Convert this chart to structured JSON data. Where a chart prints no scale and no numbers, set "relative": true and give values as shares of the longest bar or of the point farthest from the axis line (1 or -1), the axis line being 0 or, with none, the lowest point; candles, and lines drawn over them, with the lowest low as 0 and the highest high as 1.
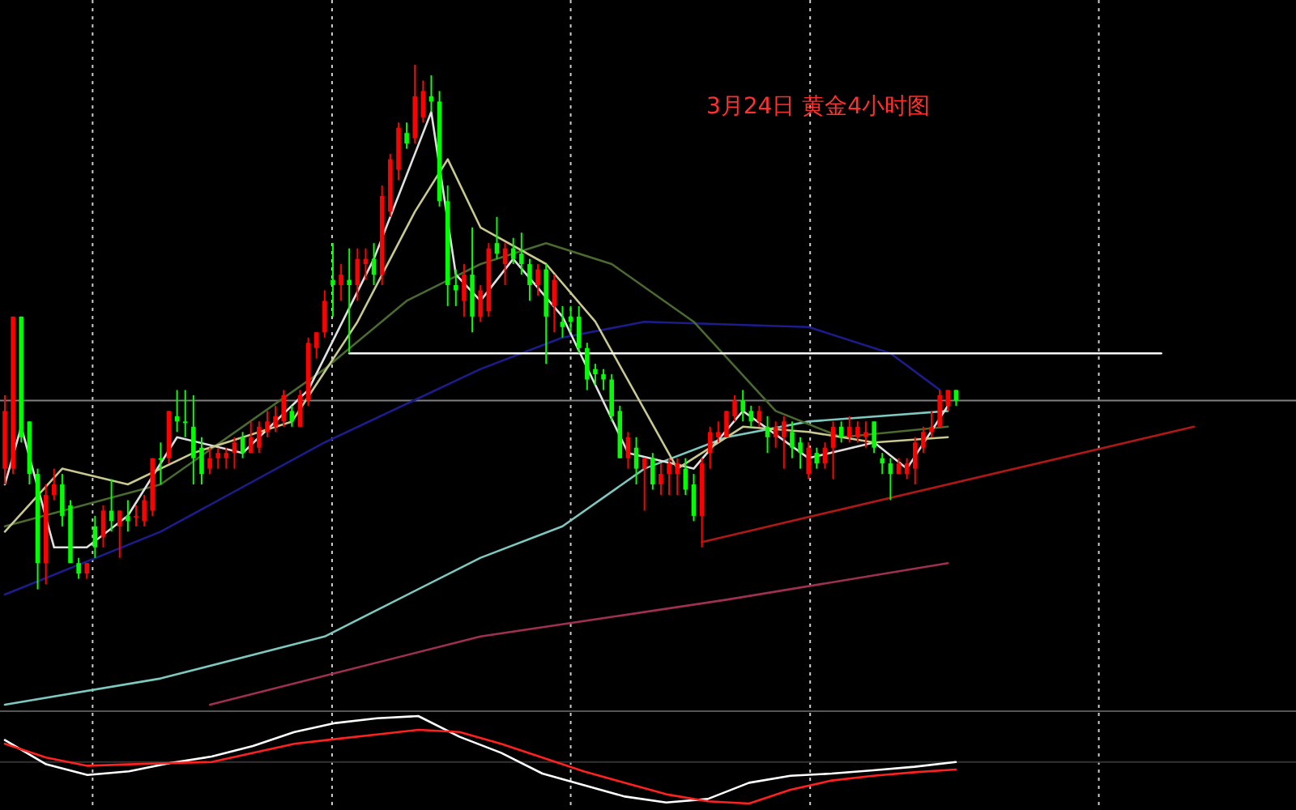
{
  "chart_data": [
    {
      "type": "candlestick",
      "title": "3月24日 黄金4小时图",
      "relative": true,
      "categories": [
        null,
        null,
        null,
        null,
        null,
        null,
        null,
        null,
        null,
        null,
        null,
        null,
        null,
        null,
        null,
        null,
        null,
        null,
        null,
        null,
        null,
        null,
        null,
        null,
        null,
        null,
        null,
        null,
        null,
        null,
        null,
        null,
        null,
        null,
        null,
        null,
        null,
        null,
        null,
        null,
        null,
        null,
        null,
        null,
        null,
        null,
        null,
        null,
        null,
        null,
        null,
        null,
        null,
        null,
        null,
        null,
        null,
        null,
        null,
        null,
        null,
        null,
        null,
        null,
        null,
        null,
        null,
        null,
        null,
        null,
        null,
        null,
        null,
        null,
        null,
        null,
        null,
        null,
        null,
        null,
        null,
        null,
        null,
        null,
        null,
        null,
        null,
        null,
        null,
        null,
        null,
        null,
        null,
        null,
        null,
        null,
        null,
        null,
        null,
        null,
        null,
        null,
        null,
        null,
        null,
        null,
        null,
        null,
        null,
        null,
        null,
        null,
        null,
        null,
        null,
        null,
        null,
        null,
        null,
        null,
        null,
        null,
        null,
        null,
        null,
        null,
        null,
        null,
        null,
        null,
        null,
        null,
        null,
        null,
        null,
        null,
        null,
        null,
        null,
        null,
        null,
        null,
        null,
        null,
        null,
        null
      ],
      "ohlc": [
        [
          0.23,
          0.37,
          0.2,
          0.34
        ],
        [
          0.23,
          0.52,
          0.22,
          0.52
        ],
        [
          0.52,
          0.52,
          0.28,
          0.29
        ],
        [
          0.32,
          0.32,
          0.2,
          0.22
        ],
        [
          0.22,
          0.23,
          0,
          0.05
        ],
        [
          0.05,
          0.2,
          0.01,
          0.18
        ],
        [
          0.18,
          0.23,
          0.17,
          0.2
        ],
        [
          0.2,
          0.22,
          0.12,
          0.14
        ],
        [
          0.16,
          0.17,
          0.05,
          0.05
        ],
        [
          0.05,
          0.06,
          0.02,
          0.03
        ],
        [
          0.03,
          0.05,
          0.02,
          0.05
        ],
        [
          0.12,
          0.14,
          0.06,
          0.08
        ],
        [
          0.1,
          0.16,
          0.08,
          0.15
        ],
        [
          0.15,
          0.21,
          0.11,
          0.13
        ],
        [
          0.12,
          0.15,
          0.06,
          0.15
        ],
        [
          0.14,
          0.17,
          0.11,
          0.13
        ],
        [
          0.14,
          0.16,
          0.12,
          0.14
        ],
        [
          0.13,
          0.18,
          0.12,
          0.17
        ],
        [
          0.15,
          0.25,
          0.14,
          0.25
        ],
        [
          0.25,
          0.28,
          0.2,
          0.25
        ],
        [
          0.25,
          0.34,
          0.24,
          0.34
        ],
        [
          0.33,
          0.38,
          0.3,
          0.32
        ],
        [
          0.32,
          0.38,
          0.29,
          0.32
        ],
        [
          0.31,
          0.37,
          0.2,
          0.25
        ],
        [
          0.27,
          0.29,
          0.2,
          0.22
        ],
        [
          0.23,
          0.27,
          0.22,
          0.25
        ],
        [
          0.25,
          0.27,
          0.23,
          0.26
        ],
        [
          0.25,
          0.27,
          0.23,
          0.26
        ],
        [
          0.26,
          0.29,
          0.23,
          0.28
        ],
        [
          0.29,
          0.3,
          0.25,
          0.26
        ],
        [
          0.26,
          0.32,
          0.26,
          0.29
        ],
        [
          0.27,
          0.32,
          0.26,
          0.31
        ],
        [
          0.3,
          0.34,
          0.29,
          0.32
        ],
        [
          0.31,
          0.35,
          0.3,
          0.33
        ],
        [
          0.32,
          0.38,
          0.31,
          0.37
        ],
        [
          0.34,
          0.35,
          0.31,
          0.32
        ],
        [
          0.31,
          0.38,
          0.31,
          0.37
        ],
        [
          0.36,
          0.48,
          0.35,
          0.47
        ],
        [
          0.46,
          0.49,
          0.44,
          0.49
        ],
        [
          0.49,
          0.57,
          0.48,
          0.55
        ],
        [
          0.59,
          0.66,
          0.52,
          0.58
        ],
        [
          0.58,
          0.62,
          0.55,
          0.6
        ],
        [
          0.59,
          0.65,
          0.45,
          0.58
        ],
        [
          0.58,
          0.65,
          0.55,
          0.63
        ],
        [
          0.62,
          0.65,
          0.59,
          0.63
        ],
        [
          0.63,
          0.66,
          0.58,
          0.6
        ],
        [
          0.6,
          0.77,
          0.58,
          0.75
        ],
        [
          0.72,
          0.83,
          0.71,
          0.82
        ],
        [
          0.8,
          0.89,
          0.78,
          0.88
        ],
        [
          0.87,
          0.89,
          0.84,
          0.85
        ],
        [
          0.86,
          1,
          0.85,
          0.94
        ],
        [
          0.9,
          0.97,
          0.89,
          0.95
        ],
        [
          0.94,
          0.98,
          0.91,
          0.93
        ],
        [
          0.93,
          0.95,
          0.73,
          0.74
        ],
        [
          0.74,
          0.77,
          0.54,
          0.58
        ],
        [
          0.58,
          0.61,
          0.54,
          0.57
        ],
        [
          0.55,
          0.62,
          0.52,
          0.6
        ],
        [
          0.6,
          0.69,
          0.49,
          0.52
        ],
        [
          0.52,
          0.58,
          0.51,
          0.57
        ],
        [
          0.53,
          0.66,
          0.52,
          0.65
        ],
        [
          0.66,
          0.71,
          0.63,
          0.64
        ],
        [
          0.62,
          0.66,
          0.58,
          0.65
        ],
        [
          0.65,
          0.67,
          0.62,
          0.63
        ],
        [
          0.64,
          0.68,
          0.6,
          0.62
        ],
        [
          0.62,
          0.63,
          0.55,
          0.58
        ],
        [
          0.58,
          0.62,
          0.56,
          0.61
        ],
        [
          0.61,
          0.62,
          0.43,
          0.52
        ],
        [
          0.54,
          0.6,
          0.49,
          0.59
        ],
        [
          0.51,
          0.54,
          0.48,
          0.5
        ],
        [
          0.52,
          0.54,
          0.49,
          0.51
        ],
        [
          0.52,
          0.54,
          0.45,
          0.46
        ],
        [
          0.46,
          0.47,
          0.38,
          0.4
        ],
        [
          0.42,
          0.43,
          0.39,
          0.41
        ],
        [
          0.41,
          0.42,
          0.38,
          0.4
        ],
        [
          0.4,
          0.41,
          0.32,
          0.33
        ],
        [
          0.34,
          0.35,
          0.25,
          0.25
        ],
        [
          0.25,
          0.3,
          0.23,
          0.29
        ],
        [
          0.27,
          0.29,
          0.2,
          0.23
        ],
        [
          0.23,
          0.25,
          0.15,
          0.25
        ],
        [
          0.25,
          0.26,
          0.19,
          0.2
        ],
        [
          0.2,
          0.24,
          0.18,
          0.22
        ],
        [
          0.22,
          0.25,
          0.18,
          0.24
        ],
        [
          0.22,
          0.25,
          0.18,
          0.24
        ],
        [
          0.23,
          0.25,
          0.18,
          0.19
        ],
        [
          0.2,
          0.22,
          0.13,
          0.14
        ],
        [
          0.14,
          0.25,
          0.08,
          0.24
        ],
        [
          0.26,
          0.31,
          0.23,
          0.3
        ],
        [
          0.29,
          0.32,
          0.28,
          0.3
        ],
        [
          0.29,
          0.34,
          0.29,
          0.34
        ],
        [
          0.33,
          0.37,
          0.32,
          0.36
        ],
        [
          0.36,
          0.38,
          0.32,
          0.34
        ],
        [
          0.34,
          0.35,
          0.31,
          0.32
        ],
        [
          0.32,
          0.35,
          0.31,
          0.34
        ],
        [
          0.31,
          0.33,
          0.26,
          0.29
        ],
        [
          0.29,
          0.32,
          0.27,
          0.31
        ],
        [
          0.29,
          0.33,
          0.23,
          0.32
        ],
        [
          0.3,
          0.32,
          0.25,
          0.27
        ],
        [
          0.28,
          0.29,
          0.23,
          0.26
        ],
        [
          0.22,
          0.28,
          0.21,
          0.27
        ],
        [
          0.26,
          0.27,
          0.23,
          0.24
        ],
        [
          0.24,
          0.28,
          0.23,
          0.27
        ],
        [
          0.27,
          0.32,
          0.21,
          0.31
        ],
        [
          0.31,
          0.32,
          0.28,
          0.29
        ],
        [
          0.29,
          0.33,
          0.28,
          0.31
        ],
        [
          0.29,
          0.32,
          0.28,
          0.31
        ],
        [
          0.29,
          0.32,
          0.27,
          0.3
        ],
        [
          0.32,
          0.32,
          0.26,
          0.27
        ],
        [
          0.25,
          0.26,
          0.22,
          0.24
        ],
        [
          0.24,
          0.25,
          0.17,
          0.22
        ],
        [
          0.22,
          0.25,
          0.22,
          0.24
        ],
        [
          0.22,
          0.25,
          0.21,
          0.24
        ],
        [
          0.23,
          0.29,
          0.2,
          0.28
        ],
        [
          0.27,
          0.31,
          0.26,
          0.3
        ],
        [
          0.3,
          0.34,
          0.29,
          0.31
        ],
        [
          0.31,
          0.38,
          0.31,
          0.37
        ],
        [
          0.35,
          0.38,
          0.34,
          0.38
        ],
        [
          0.38,
          0.38,
          0.35,
          0.36
        ],
        null,
        null,
        null,
        null,
        null,
        null,
        null,
        null,
        null,
        null,
        null,
        null,
        null,
        null,
        null,
        null,
        null,
        null,
        null,
        null,
        null,
        null,
        null,
        null,
        null,
        null,
        null,
        null,
        null
      ],
      "colors": [
        "#ff0000",
        "#ff0000",
        "#00ff00",
        "#00ff00",
        "#00ff00",
        "#ff0000",
        "#ff0000",
        "#00ff00",
        "#00ff00",
        "#00ff00",
        "#ff0000",
        "#00ff00",
        "#ff0000",
        "#00ff00",
        "#ff0000",
        "#00ff00",
        "#ff0000",
        "#ff0000",
        "#ff0000",
        "#00ff00",
        "#ff0000",
        "#00ff00",
        "#00ff00",
        "#00ff00",
        "#00ff00",
        "#ff0000",
        "#ff0000",
        "#ff0000",
        "#ff0000",
        "#00ff00",
        "#ff0000",
        "#ff0000",
        "#ff0000",
        "#ff0000",
        "#ff0000",
        "#00ff00",
        "#ff0000",
        "#ff0000",
        "#ff0000",
        "#ff0000",
        "#00ff00",
        "#ff0000",
        "#00ff00",
        "#ff0000",
        "#ff0000",
        "#00ff00",
        "#ff0000",
        "#ff0000",
        "#ff0000",
        "#00ff00",
        "#ff0000",
        "#ff0000",
        "#00ff00",
        "#00ff00",
        "#00ff00",
        "#00ff00",
        "#ff0000",
        "#00ff00",
        "#ff0000",
        "#ff0000",
        "#00ff00",
        "#ff0000",
        "#00ff00",
        "#00ff00",
        "#00ff00",
        "#ff0000",
        "#00ff00",
        "#ff0000",
        "#00ff00",
        "#00ff00",
        "#00ff00",
        "#00ff00",
        "#00ff00",
        "#00ff00",
        "#00ff00",
        "#00ff00",
        "#ff0000",
        "#00ff00",
        "#ff0000",
        "#00ff00",
        "#ff0000",
        "#ff0000",
        "#ff0000",
        "#00ff00",
        "#00ff00",
        "#ff0000",
        "#ff0000",
        "#ff0000",
        "#ff0000",
        "#ff0000",
        "#00ff00",
        "#00ff00",
        "#ff0000",
        "#00ff00",
        "#ff0000",
        "#ff0000",
        "#00ff00",
        "#00ff00",
        "#ff0000",
        "#00ff00",
        "#ff0000",
        "#ff0000",
        "#00ff00",
        "#ff0000",
        "#ff0000",
        "#ff0000",
        "#00ff00",
        "#00ff00",
        "#00ff00",
        "#ff0000",
        "#ff0000",
        "#ff0000",
        "#ff0000",
        "#ff0000",
        "#ff0000",
        "#ff0000",
        "#00ff00",
        null,
        null,
        null,
        null,
        null,
        null,
        null,
        null,
        null,
        null,
        null,
        null,
        null,
        null,
        null,
        null,
        null,
        null,
        null,
        null,
        null,
        null,
        null,
        null,
        null,
        null,
        null,
        null,
        null
      ],
      "series": [
        {
          "type": "line",
          "color": "#1c1c8c",
          "values": [
            -0.01,
            null,
            null,
            null,
            null,
            null,
            null,
            null,
            null,
            null,
            null,
            null,
            null,
            null,
            null,
            null,
            null,
            null,
            null,
            0.11,
            null,
            null,
            null,
            null,
            null,
            null,
            null,
            null,
            null,
            null,
            null,
            null,
            null,
            null,
            null,
            null,
            null,
            null,
            null,
            0.28,
            null,
            null,
            null,
            null,
            null,
            null,
            null,
            null,
            null,
            null,
            null,
            null,
            null,
            null,
            null,
            null,
            null,
            null,
            0.42,
            null,
            null,
            null,
            null,
            null,
            null,
            null,
            null,
            null,
            0.48,
            null,
            null,
            null,
            null,
            null,
            null,
            null,
            null,
            null,
            0.51,
            null,
            null,
            null,
            null,
            null,
            null,
            null,
            null,
            null,
            null,
            null,
            null,
            null,
            null,
            null,
            null,
            null,
            null,
            null,
            0.5,
            null,
            null,
            null,
            null,
            null,
            null,
            null,
            null,
            null,
            0.45,
            null,
            null,
            null,
            null,
            null,
            0.38,
            null,
            null,
            null,
            null,
            null,
            null,
            null,
            null,
            null,
            null,
            null,
            null,
            null,
            null,
            null,
            null,
            null,
            null,
            null,
            null,
            null,
            null,
            null,
            null,
            null,
            null,
            null,
            null,
            null,
            null,
            null
          ]
        },
        {
          "type": "line",
          "color": "#7ec8c0",
          "values": [
            -0.22,
            null,
            null,
            null,
            null,
            null,
            null,
            null,
            null,
            null,
            null,
            null,
            null,
            null,
            null,
            null,
            null,
            null,
            null,
            -0.17,
            null,
            null,
            null,
            null,
            null,
            null,
            null,
            null,
            null,
            null,
            null,
            null,
            null,
            null,
            null,
            null,
            null,
            null,
            null,
            -0.09,
            null,
            null,
            null,
            null,
            null,
            null,
            null,
            null,
            null,
            null,
            null,
            null,
            null,
            null,
            null,
            null,
            null,
            null,
            0.06,
            null,
            null,
            null,
            null,
            null,
            null,
            null,
            null,
            null,
            0.12,
            null,
            null,
            null,
            null,
            null,
            null,
            null,
            null,
            null,
            0.23,
            null,
            null,
            null,
            null,
            null,
            null,
            null,
            null,
            null,
            0.29,
            null,
            null,
            null,
            null,
            null,
            null,
            null,
            null,
            null,
            0.32,
            null,
            null,
            null,
            null,
            null,
            null,
            null,
            null,
            null,
            null,
            null,
            null,
            null,
            null,
            null,
            null,
            0.34,
            null,
            null,
            null,
            null,
            null,
            null,
            null,
            null,
            null,
            null,
            null,
            null,
            null,
            null,
            null,
            null,
            null,
            null,
            null,
            null,
            null,
            null,
            null,
            null,
            null,
            null,
            null,
            null,
            null,
            null
          ]
        },
        {
          "type": "line",
          "color": "#a03050",
          "values": [
            null,
            null,
            null,
            null,
            null,
            null,
            null,
            null,
            null,
            null,
            null,
            null,
            null,
            null,
            null,
            null,
            null,
            null,
            null,
            null,
            null,
            null,
            null,
            null,
            null,
            -0.22,
            null,
            null,
            null,
            null,
            null,
            null,
            null,
            null,
            null,
            null,
            null,
            null,
            null,
            null,
            null,
            null,
            null,
            null,
            null,
            null,
            null,
            null,
            null,
            null,
            null,
            null,
            null,
            null,
            null,
            null,
            null,
            null,
            -0.09,
            null,
            null,
            null,
            null,
            null,
            null,
            null,
            null,
            null,
            null,
            null,
            null,
            null,
            null,
            null,
            null,
            null,
            null,
            null,
            null,
            null,
            null,
            null,
            null,
            null,
            null,
            null,
            null,
            null,
            -0.02,
            null,
            null,
            null,
            null,
            null,
            null,
            null,
            null,
            null,
            null,
            null,
            null,
            null,
            null,
            null,
            null,
            null,
            null,
            null,
            null,
            null,
            null,
            null,
            null,
            null,
            null,
            0.05,
            null,
            null,
            null,
            null,
            null,
            null,
            null,
            null,
            null,
            null,
            null,
            null,
            null,
            null,
            null,
            null,
            null,
            null,
            null,
            null,
            null,
            null,
            null,
            null,
            null,
            null,
            null,
            null,
            null,
            null
          ]
        },
        {
          "type": "line",
          "color": "#4a6a30",
          "values": [
            0.12,
            null,
            null,
            null,
            null,
            null,
            null,
            null,
            null,
            null,
            null,
            null,
            null,
            null,
            null,
            null,
            null,
            null,
            null,
            0.2,
            null,
            null,
            null,
            null,
            null,
            null,
            null,
            null,
            null,
            null,
            null,
            null,
            null,
            null,
            null,
            null,
            null,
            null,
            null,
            0.42,
            null,
            null,
            null,
            null,
            null,
            null,
            null,
            null,
            null,
            0.55,
            null,
            null,
            null,
            null,
            null,
            null,
            null,
            null,
            0.62,
            null,
            null,
            null,
            null,
            null,
            null,
            null,
            0.66,
            null,
            null,
            null,
            null,
            null,
            null,
            null,
            0.62,
            null,
            null,
            null,
            null,
            null,
            null,
            null,
            null,
            null,
            0.51,
            null,
            null,
            null,
            null,
            null,
            null,
            null,
            null,
            null,
            0.34,
            null,
            null,
            null,
            null,
            null,
            null,
            null,
            0.29,
            null,
            null,
            null,
            null,
            null,
            null,
            null,
            null,
            null,
            null,
            null,
            null,
            0.31,
            null,
            null,
            null,
            null,
            null,
            null,
            null,
            null,
            null,
            null,
            null,
            null,
            null,
            null,
            null,
            null,
            null,
            null,
            null,
            null,
            null,
            null,
            null,
            null,
            null,
            null,
            null,
            null,
            null,
            null
          ]
        },
        {
          "type": "line",
          "color": "#e0e0e0",
          "values": [
            0.2,
            null,
            0.31,
            null,
            null,
            null,
            0.08,
            null,
            null,
            null,
            0.08,
            null,
            null,
            null,
            null,
            0.14,
            null,
            null,
            null,
            null,
            null,
            0.29,
            null,
            null,
            null,
            null,
            null,
            null,
            null,
            0.26,
            null,
            null,
            null,
            null,
            null,
            null,
            null,
            0.38,
            null,
            null,
            null,
            null,
            null,
            null,
            null,
            0.63,
            null,
            null,
            null,
            null,
            null,
            null,
            0.91,
            null,
            null,
            0.6,
            null,
            null,
            0.55,
            null,
            null,
            null,
            0.63,
            null,
            null,
            null,
            null,
            null,
            0.52,
            null,
            null,
            null,
            null,
            null,
            null,
            null,
            0.26,
            null,
            null,
            null,
            null,
            null,
            null,
            null,
            0.23,
            null,
            null,
            null,
            null,
            null,
            0.34,
            null,
            null,
            null,
            null,
            null,
            null,
            null,
            0.25,
            null,
            null,
            null,
            null,
            null,
            null,
            null,
            0.28,
            null,
            null,
            null,
            0.23,
            null,
            null,
            null,
            null,
            0.35,
            null,
            null,
            null,
            null,
            null,
            null,
            null,
            null,
            null,
            null,
            null,
            null,
            null,
            null,
            null,
            null,
            null,
            null,
            null,
            null,
            null,
            null,
            null,
            null,
            null,
            null,
            null,
            null,
            null,
            null
          ]
        },
        {
          "type": "line",
          "color": "#c8c890",
          "values": [
            0.11,
            null,
            null,
            null,
            null,
            null,
            null,
            0.23,
            null,
            null,
            null,
            null,
            null,
            null,
            null,
            0.2,
            null,
            null,
            null,
            null,
            null,
            null,
            null,
            0.26,
            null,
            null,
            null,
            null,
            null,
            null,
            null,
            null,
            null,
            null,
            null,
            0.32,
            null,
            null,
            null,
            null,
            null,
            null,
            null,
            0.51,
            null,
            null,
            null,
            null,
            null,
            null,
            0.72,
            null,
            null,
            null,
            0.82,
            null,
            null,
            null,
            0.69,
            null,
            null,
            null,
            null,
            null,
            null,
            null,
            0.62,
            null,
            null,
            null,
            null,
            null,
            0.51,
            null,
            null,
            null,
            null,
            null,
            null,
            null,
            null,
            null,
            0.23,
            null,
            null,
            null,
            null,
            null,
            null,
            null,
            0.31,
            null,
            null,
            null,
            null,
            null,
            null,
            null,
            0.3,
            null,
            null,
            null,
            null,
            null,
            null,
            null,
            0.28,
            null,
            null,
            null,
            null,
            null,
            null,
            null,
            null,
            0.29,
            null,
            null,
            null,
            null,
            null,
            null,
            null,
            null,
            null,
            null,
            null,
            null,
            null,
            null,
            null,
            null,
            null,
            null,
            null,
            null,
            null,
            null,
            null,
            null,
            null,
            null,
            null,
            null,
            null,
            null
          ]
        },
        {
          "type": "line",
          "color": "#ffffff",
          "values": [
            null,
            null,
            null,
            null,
            null,
            null,
            null,
            null,
            null,
            null,
            null,
            null,
            null,
            null,
            null,
            null,
            null,
            null,
            null,
            null,
            null,
            null,
            null,
            null,
            null,
            null,
            null,
            null,
            null,
            null,
            null,
            null,
            null,
            null,
            null,
            null,
            null,
            null,
            null,
            null,
            null,
            null,
            0.45,
            null,
            null,
            null,
            null,
            null,
            null,
            null,
            null,
            null,
            null,
            null,
            null,
            null,
            null,
            null,
            null,
            null,
            null,
            null,
            null,
            null,
            null,
            null,
            null,
            null,
            null,
            null,
            null,
            null,
            null,
            null,
            null,
            null,
            null,
            null,
            null,
            null,
            null,
            null,
            null,
            null,
            null,
            null,
            null,
            null,
            null,
            null,
            null,
            null,
            null,
            null,
            null,
            null,
            null,
            null,
            null,
            null,
            null,
            null,
            null,
            null,
            null,
            null,
            null,
            null,
            null,
            null,
            null,
            null,
            null,
            null,
            null,
            null,
            null,
            null,
            null,
            null,
            null,
            null,
            null,
            null,
            null,
            null,
            null,
            null,
            null,
            null,
            null,
            null,
            null,
            null,
            null,
            null,
            null,
            null,
            null,
            null,
            null,
            0.45,
            null,
            null,
            null,
            null
          ]
        },
        {
          "type": "line",
          "color": "#b01818",
          "values": [
            null,
            null,
            null,
            null,
            null,
            null,
            null,
            null,
            null,
            null,
            null,
            null,
            null,
            null,
            null,
            null,
            null,
            null,
            null,
            null,
            null,
            null,
            null,
            null,
            null,
            null,
            null,
            null,
            null,
            null,
            null,
            null,
            null,
            null,
            null,
            null,
            null,
            null,
            null,
            null,
            null,
            null,
            null,
            null,
            null,
            null,
            null,
            null,
            null,
            null,
            null,
            null,
            null,
            null,
            null,
            null,
            null,
            null,
            null,
            null,
            null,
            null,
            null,
            null,
            null,
            null,
            null,
            null,
            null,
            null,
            null,
            null,
            null,
            null,
            null,
            null,
            null,
            null,
            null,
            null,
            null,
            null,
            null,
            null,
            null,
            0.09,
            null,
            null,
            null,
            null,
            null,
            null,
            null,
            null,
            null,
            null,
            null,
            null,
            null,
            null,
            null,
            null,
            null,
            null,
            null,
            null,
            null,
            null,
            null,
            null,
            null,
            null,
            null,
            null,
            null,
            null,
            null,
            null,
            null,
            null,
            null,
            null,
            null,
            null,
            null,
            null,
            null,
            null,
            null,
            null,
            null,
            null,
            null,
            null,
            null,
            null,
            null,
            null,
            null,
            null,
            null,
            null,
            null,
            null,
            null,
            0.31
          ]
        }
      ],
      "ref_lines": [
        {
          "axis": "y",
          "value": 0.36,
          "color": "#808080"
        }
      ]
    },
    {
      "type": "line",
      "relative": true,
      "categories": [
        null,
        null,
        null,
        null,
        null,
        null,
        null,
        null,
        null,
        null,
        null,
        null,
        null,
        null,
        null,
        null,
        null,
        null,
        null,
        null,
        null,
        null,
        null,
        null
      ],
      "series": [
        {
          "color": "#ffffff",
          "values": [
            0.48,
            -0.05,
            -0.28,
            -0.2,
            -0.02,
            0.12,
            0.35,
            0.65,
            0.85,
            0.95,
            1,
            0.55,
            0.2,
            -0.25,
            -0.5,
            -0.75,
            -0.88,
            -0.8,
            -0.45,
            -0.3,
            -0.25,
            -0.18,
            -0.1,
            0
          ]
        },
        {
          "color": "#ff2020",
          "values": [
            0.4,
            0.1,
            -0.08,
            -0.05,
            -0.02,
            0,
            0.2,
            0.4,
            0.5,
            0.6,
            0.7,
            0.65,
            0.4,
            0.1,
            -0.2,
            -0.45,
            -0.7,
            -0.85,
            -0.9,
            -0.6,
            -0.4,
            -0.3,
            -0.22,
            -0.16
          ]
        }
      ]
    }
  ]
}
